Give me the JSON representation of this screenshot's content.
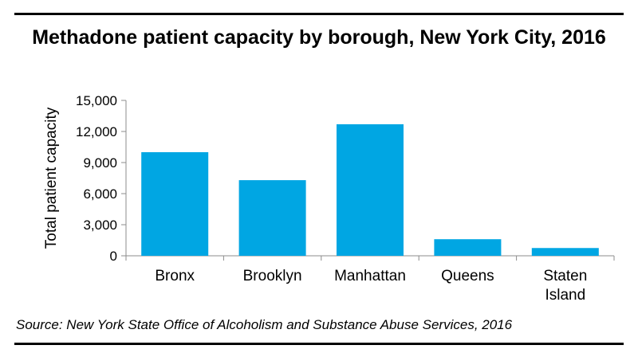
{
  "chart_data": {
    "type": "bar",
    "title": "Methadone patient capacity by borough, New York City, 2016",
    "ylabel": "Total patient capacity",
    "xlabel": "",
    "categories": [
      [
        "Bronx"
      ],
      [
        "Brooklyn"
      ],
      [
        "Manhattan"
      ],
      [
        "Queens"
      ],
      [
        "Staten",
        "Island"
      ]
    ],
    "values": [
      10000,
      7300,
      12700,
      1600,
      750
    ],
    "ylim": [
      0,
      15000
    ],
    "yticks": [
      "0",
      "3,000",
      "6,000",
      "9,000",
      "12,000",
      "15,000"
    ],
    "bar_color": "#00A6E3",
    "grid": false,
    "legend": false
  },
  "source": "Source: New York State Office of Alcoholism and Substance Abuse Services, 2016"
}
